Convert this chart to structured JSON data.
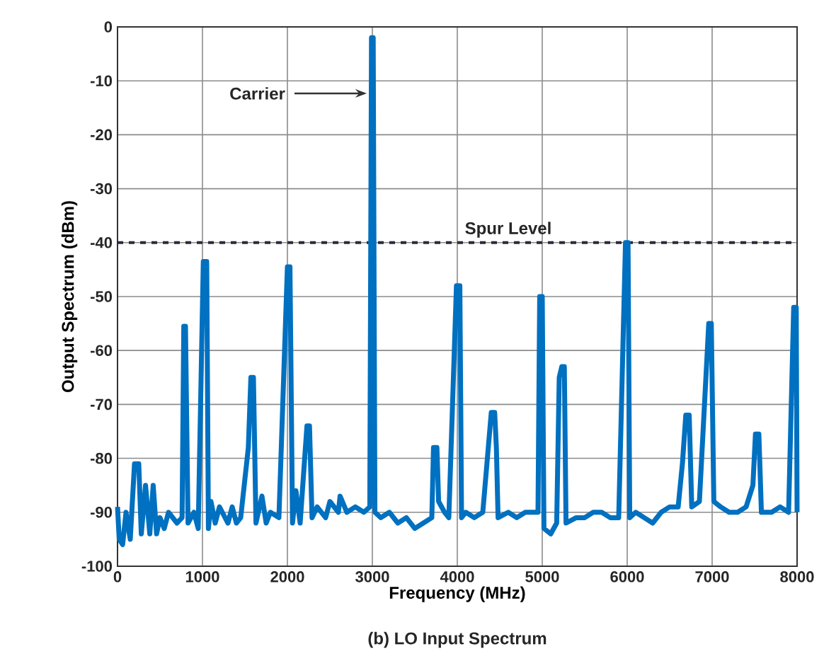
{
  "chart_data": {
    "type": "line",
    "xlabel": "Frequency (MHz)",
    "ylabel": "Output Spectrum (dBm)",
    "xlim": [
      0,
      8000
    ],
    "ylim": [
      -100,
      0
    ],
    "xticks": [
      0,
      1000,
      2000,
      3000,
      4000,
      5000,
      6000,
      7000,
      8000
    ],
    "yticks": [
      -100,
      -90,
      -80,
      -70,
      -60,
      -50,
      -40,
      -30,
      -20,
      -10,
      0
    ],
    "grid": true,
    "marker": "none",
    "line_style": "solid",
    "series": [
      {
        "color": "#0070c0",
        "x": [
          0,
          20,
          60,
          100,
          150,
          200,
          250,
          280,
          330,
          380,
          420,
          460,
          500,
          550,
          600,
          700,
          760,
          780,
          800,
          830,
          900,
          950,
          1010,
          1050,
          1070,
          1100,
          1150,
          1200,
          1300,
          1350,
          1400,
          1450,
          1540,
          1570,
          1600,
          1630,
          1700,
          1750,
          1800,
          1900,
          2000,
          2030,
          2060,
          2100,
          2150,
          2230,
          2260,
          2290,
          2350,
          2450,
          2500,
          2600,
          2620,
          2700,
          2800,
          2900,
          2970,
          2990,
          3010,
          3030,
          3100,
          3200,
          3300,
          3400,
          3500,
          3600,
          3700,
          3720,
          3760,
          3780,
          3850,
          3900,
          3990,
          4030,
          4050,
          4100,
          4200,
          4300,
          4400,
          4440,
          4460,
          4480,
          4600,
          4700,
          4800,
          4950,
          4970,
          5000,
          5020,
          5100,
          5170,
          5200,
          5230,
          5260,
          5280,
          5400,
          5500,
          5600,
          5700,
          5800,
          5900,
          5980,
          6010,
          6030,
          6100,
          6200,
          6300,
          6400,
          6500,
          6600,
          6650,
          6690,
          6730,
          6760,
          6850,
          6960,
          6990,
          7020,
          7100,
          7200,
          7300,
          7400,
          7480,
          7510,
          7550,
          7580,
          7700,
          7800,
          7900,
          7960,
          7990,
          8000
        ],
        "values": [
          -89,
          -95,
          -96,
          -90,
          -95,
          -81,
          -81,
          -94,
          -85,
          -94,
          -85,
          -94,
          -91,
          -93,
          -90,
          -92,
          -91,
          -55.5,
          -55.5,
          -92,
          -90,
          -93,
          -43.5,
          -43.5,
          -93,
          -88,
          -92,
          -89,
          -92,
          -89,
          -92,
          -91,
          -78,
          -65,
          -65,
          -92,
          -87,
          -92,
          -90,
          -91,
          -44.5,
          -44.5,
          -92,
          -86,
          -92,
          -74,
          -74,
          -91,
          -89,
          -91,
          -88,
          -90,
          -87,
          -90,
          -89,
          -90,
          -89,
          -2,
          -2,
          -90,
          -91,
          -90,
          -92,
          -91,
          -93,
          -92,
          -91,
          -78,
          -78,
          -88,
          -90,
          -91,
          -48,
          -48,
          -91,
          -90,
          -91,
          -90,
          -71.5,
          -71.5,
          -78,
          -91,
          -90,
          -91,
          -90,
          -90,
          -50,
          -50,
          -93,
          -94,
          -92,
          -65,
          -63,
          -63,
          -92,
          -91,
          -91,
          -90,
          -90,
          -91,
          -91,
          -40,
          -40,
          -91,
          -90,
          -91,
          -92,
          -90,
          -89,
          -89,
          -81,
          -72,
          -72,
          -89,
          -88,
          -55,
          -55,
          -88,
          -89,
          -90,
          -90,
          -89,
          -85,
          -75.5,
          -75.5,
          -90,
          -90,
          -89,
          -90,
          -52,
          -52,
          -90
        ]
      }
    ],
    "ref_lines": [
      {
        "axis": "y",
        "value": -40,
        "label": "Spur Level",
        "color": "#2b2b3b",
        "line_style": "dashed"
      }
    ],
    "annotations": [
      "Carrier",
      "(b) LO Input Spectrum"
    ]
  }
}
